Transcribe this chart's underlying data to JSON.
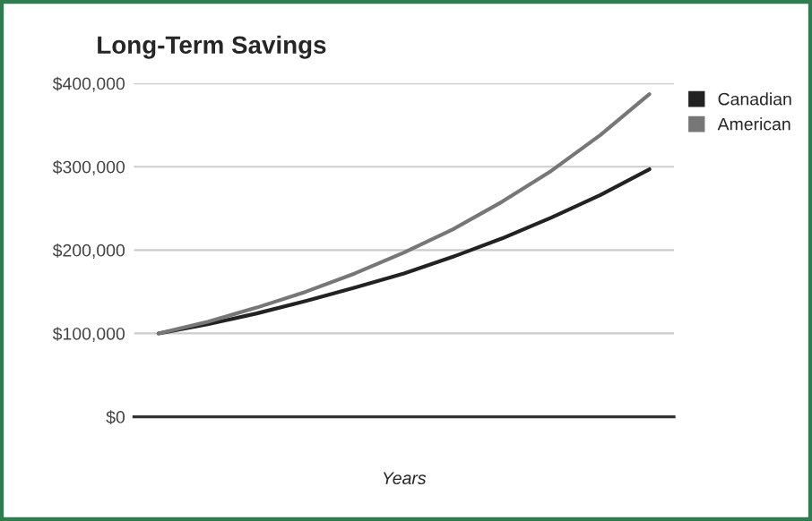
{
  "chart_data": {
    "type": "line",
    "title": "Long-Term Savings",
    "xlabel": "Years",
    "categories": [
      null,
      null,
      null,
      null,
      null,
      null,
      null,
      null,
      null,
      null,
      null
    ],
    "series": [
      {
        "name": "Canadian",
        "color": "#222222",
        "values": [
          100000,
          111000,
          124000,
          139000,
          155000,
          172000,
          192000,
          214000,
          239000,
          266000,
          297000
        ]
      },
      {
        "name": "American",
        "color": "#777777",
        "values": [
          100000,
          114000,
          131000,
          150000,
          172000,
          197000,
          225000,
          258000,
          295000,
          338000,
          387000
        ]
      }
    ],
    "ylim": [
      0,
      400000
    ],
    "yticks": [
      {
        "value": 0,
        "label": "$0"
      },
      {
        "value": 100000,
        "label": "$100,000"
      },
      {
        "value": 200000,
        "label": "$200,000"
      },
      {
        "value": 300000,
        "label": "$300,000"
      },
      {
        "value": 400000,
        "label": "$400,000"
      }
    ],
    "grid": "y",
    "legend": "top right",
    "tick_labels": "y"
  }
}
